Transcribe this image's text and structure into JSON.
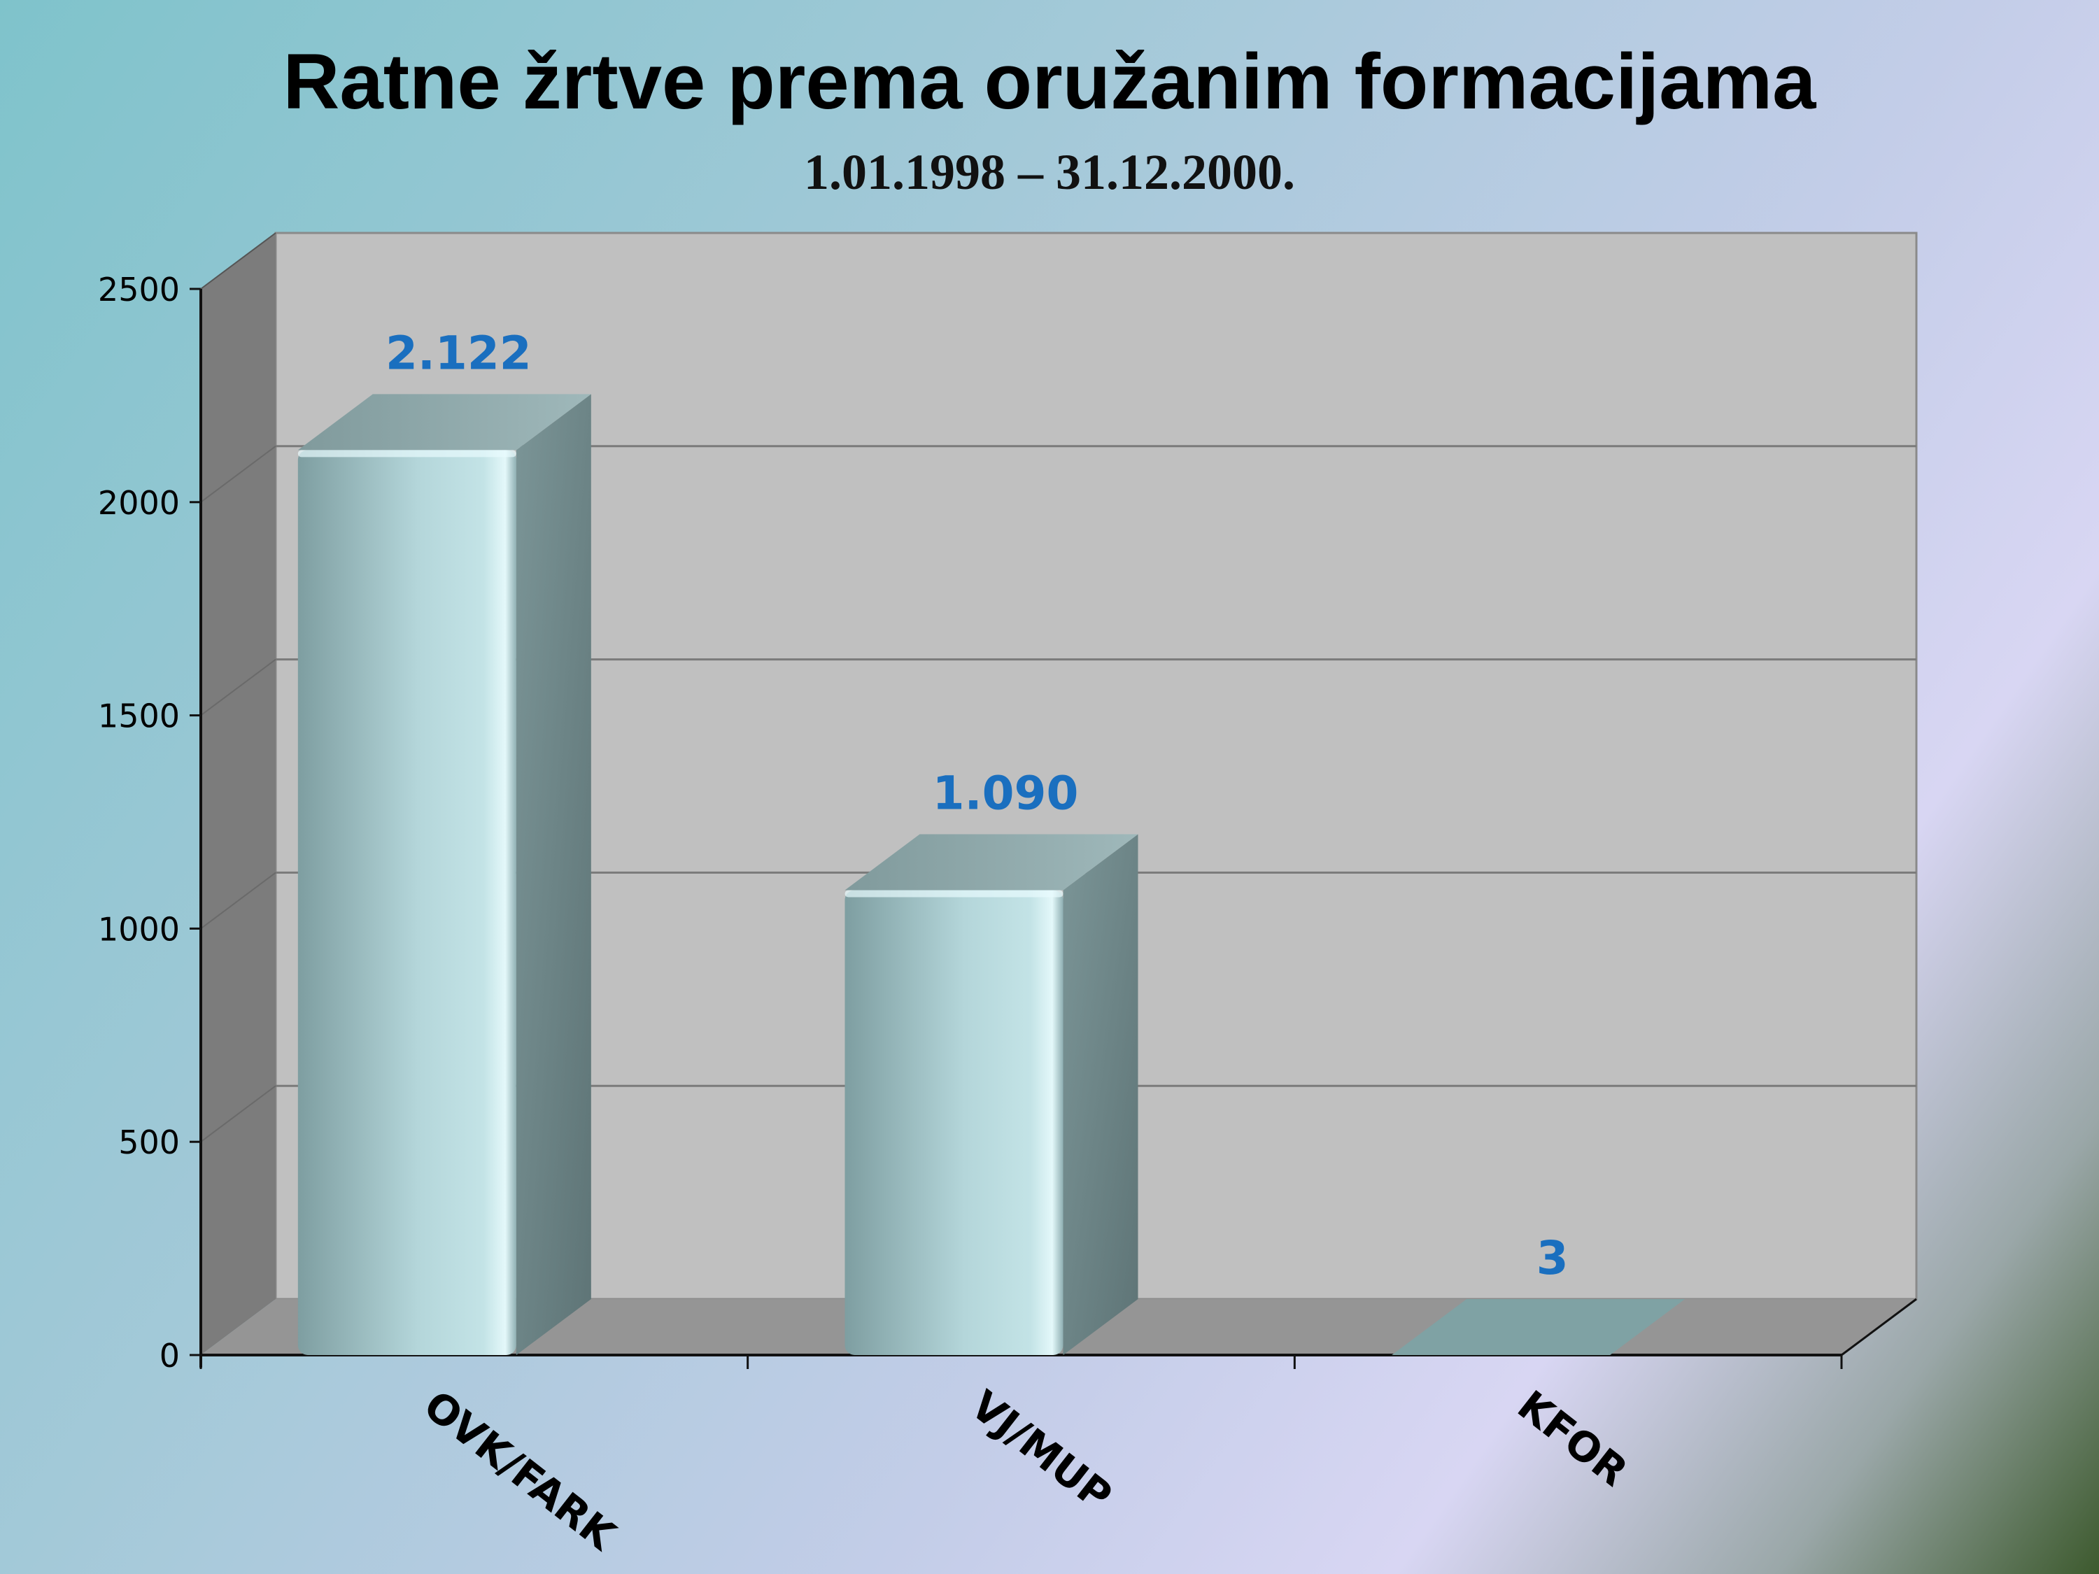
{
  "title": "Ratne žrtve prema oružanim formacijama",
  "subtitle": "1.01.1998 – 31.12.2000.",
  "chart_data": {
    "type": "bar",
    "title": "Ratne žrtve prema oružanim formacijama",
    "subtitle": "1.01.1998 – 31.12.2000.",
    "categories": [
      "OVK/FARK",
      "VJ/MUP",
      "KFOR"
    ],
    "values": [
      2122,
      1090,
      3
    ],
    "data_labels": [
      "2.122",
      "1.090",
      "3"
    ],
    "ylim": [
      0,
      2500
    ],
    "yticks": [
      "0",
      "500",
      "1000",
      "1500",
      "2000",
      "2500"
    ],
    "grid": true,
    "legend": "none",
    "colors": {
      "bar_front": "#a9cdd1",
      "bar_side": "#6f8a8c",
      "bar_top": "#8fa9ab",
      "data_label": "#1a6fbf",
      "wall": "#c0c0c0",
      "floor": "#959595",
      "side_wall": "#7c7c7c"
    }
  }
}
